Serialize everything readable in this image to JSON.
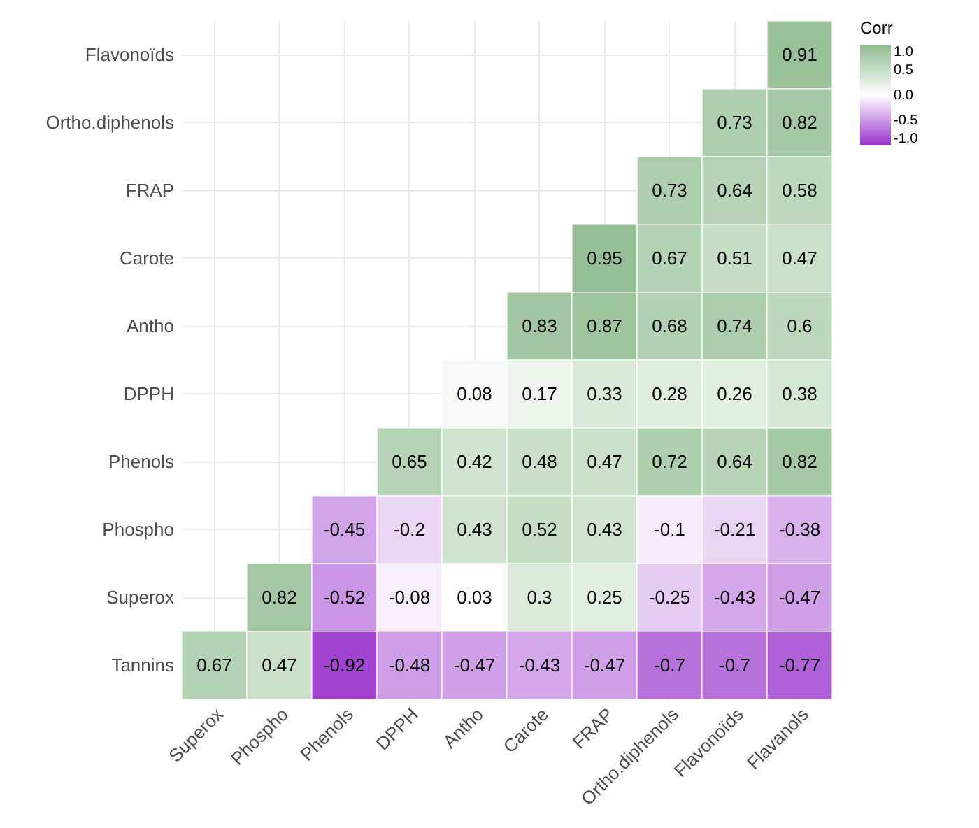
{
  "chart_data": {
    "type": "heatmap",
    "clabel": "Corr",
    "categories": [
      "Superox",
      "Phospho",
      "Phenols",
      "DPPH",
      "Antho",
      "Carote",
      "FRAP",
      "Ortho.diphenols",
      "Flavonoïds",
      "Flavanols"
    ],
    "y_categories": [
      "Flavonoïds",
      "Ortho.diphenols",
      "FRAP",
      "Carote",
      "Antho",
      "DPPH",
      "Phenols",
      "Phospho",
      "Superox",
      "Tannins"
    ],
    "cells": [
      [
        null,
        null,
        null,
        null,
        null,
        null,
        null,
        null,
        null,
        0.91
      ],
      [
        null,
        null,
        null,
        null,
        null,
        null,
        null,
        null,
        0.73,
        0.82
      ],
      [
        null,
        null,
        null,
        null,
        null,
        null,
        null,
        0.73,
        0.64,
        0.58
      ],
      [
        null,
        null,
        null,
        null,
        null,
        null,
        0.95,
        0.67,
        0.51,
        0.47
      ],
      [
        null,
        null,
        null,
        null,
        null,
        0.83,
        0.87,
        0.68,
        0.74,
        0.6
      ],
      [
        null,
        null,
        null,
        null,
        0.08,
        0.17,
        0.33,
        0.28,
        0.26,
        0.38
      ],
      [
        null,
        null,
        null,
        0.65,
        0.42,
        0.48,
        0.47,
        0.72,
        0.64,
        0.82
      ],
      [
        null,
        null,
        -0.45,
        -0.2,
        0.43,
        0.52,
        0.43,
        -0.1,
        -0.21,
        -0.38
      ],
      [
        null,
        0.82,
        -0.52,
        -0.08,
        0.03,
        0.3,
        0.25,
        -0.25,
        -0.43,
        -0.47
      ],
      [
        0.67,
        0.47,
        -0.92,
        -0.48,
        -0.47,
        -0.43,
        -0.47,
        -0.7,
        -0.7,
        -0.77
      ]
    ],
    "colors": [
      "#9932cc",
      "#ffffff",
      "#8fbc8f"
    ],
    "clim": [
      -1,
      1
    ],
    "cticks": [
      {
        "value": -1,
        "label": "-1.0"
      },
      {
        "value": -0.5,
        "label": "-0.5"
      },
      {
        "value": 0,
        "label": "0.0"
      },
      {
        "value": 0.5,
        "label": "0.5"
      },
      {
        "value": 1,
        "label": "1.0"
      }
    ],
    "data_labels": true,
    "grid": true
  }
}
